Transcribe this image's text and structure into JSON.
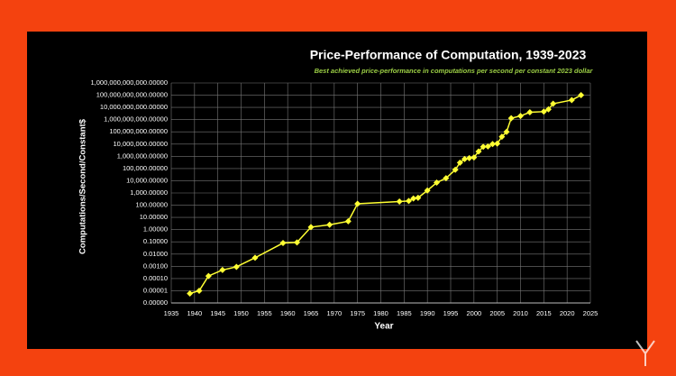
{
  "chart_data": {
    "type": "line",
    "title": "Price-Performance of Computation, 1939-2023",
    "subtitle": "Best achieved price-performance in computations per second per constant 2023 dollar",
    "xlabel": "Year",
    "ylabel": "Computations/Second/Constant$",
    "log_y": true,
    "grid": true,
    "xlim": [
      1935,
      2025
    ],
    "xticks": [
      1935,
      1940,
      1945,
      1950,
      1955,
      1960,
      1965,
      1970,
      1975,
      1980,
      1985,
      1990,
      1995,
      2000,
      2005,
      2010,
      2015,
      2020,
      2025
    ],
    "ylim": [
      1e-06,
      1000000000000
    ],
    "yticks": [
      {
        "value": 1e-06,
        "label": "0.00000"
      },
      {
        "value": 1e-05,
        "label": "0.00001"
      },
      {
        "value": 0.0001,
        "label": "0.00010"
      },
      {
        "value": 0.001,
        "label": "0.00100"
      },
      {
        "value": 0.01,
        "label": "0.01000"
      },
      {
        "value": 0.1,
        "label": "0.10000"
      },
      {
        "value": 1,
        "label": "1.00000"
      },
      {
        "value": 10,
        "label": "10.00000"
      },
      {
        "value": 100,
        "label": "100.00000"
      },
      {
        "value": 1000,
        "label": "1,000.00000"
      },
      {
        "value": 10000,
        "label": "10,000.00000"
      },
      {
        "value": 100000,
        "label": "100,000.00000"
      },
      {
        "value": 1000000,
        "label": "1,000,000.00000"
      },
      {
        "value": 10000000,
        "label": "10,000,000.00000"
      },
      {
        "value": 100000000,
        "label": "100,000,000.00000"
      },
      {
        "value": 1000000000,
        "label": "1,000,000,000.00000"
      },
      {
        "value": 10000000000,
        "label": "10,000,000,000.00000"
      },
      {
        "value": 100000000000,
        "label": "100,000,000,000.00000"
      },
      {
        "value": 1000000000000,
        "label": "1,000,000,000,000.00000"
      }
    ],
    "x": [
      1939,
      1941,
      1943,
      1946,
      1949,
      1953,
      1959,
      1962,
      1965,
      1969,
      1973,
      1975,
      1984,
      1986,
      1987,
      1988,
      1990,
      1992,
      1994,
      1996,
      1997,
      1998,
      1999,
      2000,
      2001,
      2002,
      2003,
      2004,
      2005,
      2006,
      2007,
      2008,
      2010,
      2012,
      2015,
      2016,
      2017,
      2021,
      2023
    ],
    "series": [
      {
        "color": "#ffff33",
        "values": [
          6e-06,
          1e-05,
          0.00016,
          0.0005,
          0.0009,
          0.005,
          0.08,
          0.09,
          1.6,
          2.5,
          4.8,
          130,
          200,
          220,
          350,
          400,
          1600,
          7000,
          16000,
          80000,
          300000,
          600000,
          700000,
          800000,
          2500000,
          6000000,
          6500000,
          10000000,
          11000000,
          40000000,
          100000000,
          1300000000,
          2000000000,
          4000000000,
          4500000000,
          7000000000,
          20000000000,
          40000000000,
          100000000000
        ]
      }
    ]
  }
}
